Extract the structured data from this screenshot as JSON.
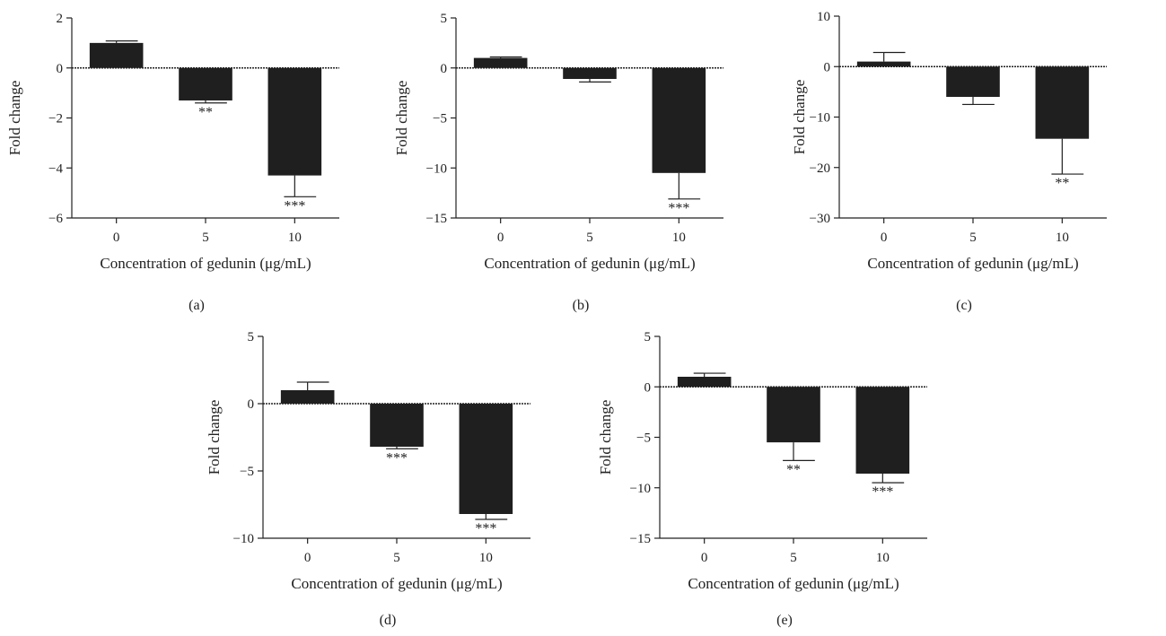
{
  "chart_data": [
    {
      "type": "bar",
      "panel_label": "(a)",
      "categories": [
        "0",
        "5",
        "10"
      ],
      "values": [
        1.0,
        -1.3,
        -4.3
      ],
      "errors": [
        0.08,
        0.1,
        0.85
      ],
      "significance": [
        "",
        "**",
        "***"
      ],
      "ylim": [
        -6,
        2
      ],
      "yticks": [
        "2",
        "0",
        "−2",
        "−4",
        "−6"
      ],
      "ytick_values": [
        2,
        0,
        -2,
        -4,
        -6
      ],
      "xlabel": "Concentration of gedunin (μg/mL)",
      "ylabel": "Fold change"
    },
    {
      "type": "bar",
      "panel_label": "(b)",
      "categories": [
        "0",
        "5",
        "10"
      ],
      "values": [
        1.0,
        -1.1,
        -10.5
      ],
      "errors": [
        0.1,
        0.3,
        2.6
      ],
      "significance": [
        "",
        "",
        "***"
      ],
      "ylim": [
        -15,
        5
      ],
      "yticks": [
        "5",
        "0",
        "−5",
        "−10",
        "−15"
      ],
      "ytick_values": [
        5,
        0,
        -5,
        -10,
        -15
      ],
      "xlabel": "Concentration of gedunin (μg/mL)",
      "ylabel": "Fold change"
    },
    {
      "type": "bar",
      "panel_label": "(c)",
      "categories": [
        "0",
        "5",
        "10"
      ],
      "values": [
        1.0,
        -6.0,
        -14.3
      ],
      "errors": [
        1.8,
        1.5,
        7.0
      ],
      "significance": [
        "",
        "",
        "**"
      ],
      "ylim": [
        -30,
        10
      ],
      "yticks": [
        "10",
        "0",
        "−10",
        "−20",
        "−30"
      ],
      "ytick_values": [
        10,
        0,
        -10,
        -20,
        -30
      ],
      "xlabel": "Concentration of gedunin (μg/mL)",
      "ylabel": "Fold change"
    },
    {
      "type": "bar",
      "panel_label": "(d)",
      "categories": [
        "0",
        "5",
        "10"
      ],
      "values": [
        1.0,
        -3.2,
        -8.2
      ],
      "errors": [
        0.6,
        0.15,
        0.4
      ],
      "significance": [
        "",
        "***",
        "***"
      ],
      "ylim": [
        -10,
        5
      ],
      "yticks": [
        "5",
        "0",
        "−5",
        "−10"
      ],
      "ytick_values": [
        5,
        0,
        -5,
        -10
      ],
      "xlabel": "Concentration of gedunin (μg/mL)",
      "ylabel": "Fold change"
    },
    {
      "type": "bar",
      "panel_label": "(e)",
      "categories": [
        "0",
        "5",
        "10"
      ],
      "values": [
        1.0,
        -5.5,
        -8.6
      ],
      "errors": [
        0.35,
        1.8,
        0.9
      ],
      "significance": [
        "",
        "**",
        "***"
      ],
      "ylim": [
        -15,
        5
      ],
      "yticks": [
        "5",
        "0",
        "−5",
        "−10",
        "−15"
      ],
      "ytick_values": [
        5,
        0,
        -5,
        -10,
        -15
      ],
      "xlabel": "Concentration of gedunin (μg/mL)",
      "ylabel": "Fold change"
    }
  ],
  "colors": {
    "bar": "#1f1f1f",
    "axis": "#222222"
  }
}
